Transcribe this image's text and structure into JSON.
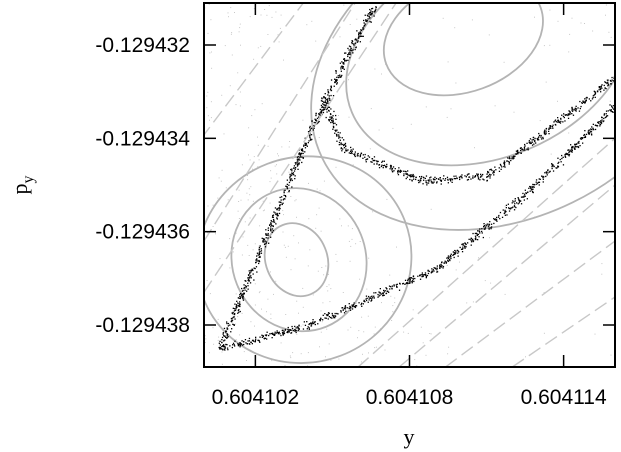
{
  "chart_data": {
    "type": "scatter",
    "title": "",
    "xlabel": "y",
    "ylabel": {
      "main": "p",
      "subscript": "y"
    },
    "xlim": [
      0.6041,
      0.604116
    ],
    "ylim": [
      -0.1294389,
      -0.1294311
    ],
    "xticks": [
      {
        "value": 0.604102,
        "label": "0.604102"
      },
      {
        "value": 0.604108,
        "label": "0.604108"
      },
      {
        "value": 0.604114,
        "label": "0.604114"
      }
    ],
    "yticks": [
      {
        "value": -0.129432,
        "label": "-0.129432"
      },
      {
        "value": -0.129434,
        "label": "-0.129434"
      },
      {
        "value": -0.129436,
        "label": "-0.129436"
      },
      {
        "value": -0.129438,
        "label": "-0.129438"
      }
    ],
    "grid": false,
    "legend": "none",
    "colors": {
      "chaotic_layer": "#000000",
      "regular_orbits": "#b4b4b4",
      "background_orbits": "#c8c8c8"
    },
    "series": [
      {
        "kind": "invariant-curves",
        "color": "#b4b4b4",
        "curves": [
          {
            "cx": 0.6041036,
            "cy": -0.1294366,
            "rx": 1.2e-06,
            "ry": 8e-07,
            "rot": -22
          },
          {
            "cx": 0.6041037,
            "cy": -0.1294366,
            "rx": 2.6e-06,
            "ry": 1.55e-06,
            "rot": -22
          },
          {
            "cx": 0.6041039,
            "cy": -0.1294366,
            "rx": 4.2e-06,
            "ry": 2.2e-06,
            "rot": -21
          },
          {
            "cx": 0.6041101,
            "cy": -0.1294318,
            "rx": 3.2e-06,
            "ry": 1.2e-06,
            "rot": -20
          },
          {
            "cx": 0.6041111,
            "cy": -0.1294322,
            "rx": 5.8e-06,
            "ry": 2.2e-06,
            "rot": -23
          },
          {
            "cx": 0.6041118,
            "cy": -0.1294325,
            "rx": 8e-06,
            "ry": 3.2e-06,
            "rot": -26
          }
        ]
      },
      {
        "kind": "chaotic-layer",
        "color": "#000000",
        "skeleton": [
          [
            [
              0.6041006,
              -0.1294385
            ],
            [
              0.604104,
              -0.129434
            ],
            [
              0.6041056,
              -0.1294322
            ],
            [
              0.6041068,
              -0.129431
            ]
          ],
          [
            [
              0.6041006,
              -0.1294385
            ],
            [
              0.604104,
              -0.129438
            ],
            [
              0.604109,
              -0.1294368
            ],
            [
              0.6041125,
              -0.1294352
            ],
            [
              0.604116,
              -0.1294333
            ]
          ],
          [
            [
              0.6041046,
              -0.1294331
            ],
            [
              0.6041054,
              -0.1294342
            ],
            [
              0.6041085,
              -0.1294349
            ],
            [
              0.604111,
              -0.1294348
            ],
            [
              0.604116,
              -0.1294327
            ]
          ]
        ]
      },
      {
        "kind": "outer-orbits",
        "color": "#c8c8c8",
        "lines": [
          [
            [
              0.6040999,
              -0.129434
            ],
            [
              0.604104,
              -0.129431
            ]
          ],
          [
            [
              0.6041,
              -0.1294362
            ],
            [
              0.604106,
              -0.129431
            ]
          ],
          [
            [
              0.6041,
              -0.1294373
            ],
            [
              0.6041076,
              -0.129431
            ]
          ],
          [
            [
              0.604106,
              -0.1294389
            ],
            [
              0.604116,
              -0.129434
            ]
          ],
          [
            [
              0.6041076,
              -0.1294389
            ],
            [
              0.604116,
              -0.129435
            ]
          ],
          [
            [
              0.6041094,
              -0.1294389
            ],
            [
              0.604116,
              -0.1294362
            ]
          ],
          [
            [
              0.604112,
              -0.1294389
            ],
            [
              0.604116,
              -0.1294374
            ]
          ]
        ]
      }
    ]
  }
}
